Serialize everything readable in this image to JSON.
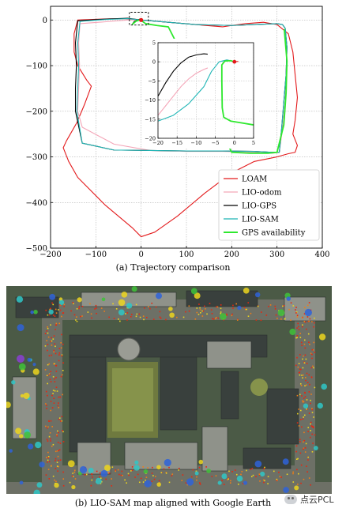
{
  "chart_data": [
    {
      "type": "line",
      "title": "",
      "xlabel": "",
      "ylabel": "",
      "xlim": [
        -200,
        400
      ],
      "ylim": [
        -500,
        30
      ],
      "xticks": [
        -200,
        -100,
        0,
        100,
        200,
        300,
        400
      ],
      "yticks": [
        0,
        -100,
        -200,
        -300,
        -400,
        -500
      ],
      "grid": true,
      "legend_position": "bottom-right",
      "highlight_box": [
        [
          -26,
          17
        ],
        [
          -26,
          -11
        ],
        [
          16,
          -11
        ],
        [
          16,
          17
        ]
      ],
      "start_point": [
        0,
        0
      ],
      "series": [
        {
          "name": "LOAM",
          "color": "#e31a1c",
          "x": [
            0,
            -10,
            -40,
            -90,
            -140,
            -148,
            -148,
            -140,
            -120,
            -110,
            -125,
            -142,
            -165,
            -172,
            -160,
            -140,
            -80,
            -20,
            0,
            30,
            80,
            140,
            200,
            250,
            300,
            325,
            340,
            345,
            335,
            340,
            345,
            340,
            335,
            325,
            300,
            270,
            230,
            200,
            180,
            0
          ],
          "y": [
            0,
            1,
            3,
            2,
            0,
            -30,
            -70,
            -100,
            -132,
            -145,
            -185,
            -225,
            -265,
            -280,
            -310,
            -345,
            -405,
            -455,
            -475,
            -465,
            -430,
            -380,
            -335,
            -310,
            -300,
            -293,
            -290,
            -275,
            -250,
            -220,
            -170,
            -120,
            -70,
            -30,
            -10,
            -5,
            -8,
            -12,
            -15,
            0
          ]
        },
        {
          "name": "LIO-odom",
          "color": "#f4a6b8",
          "x": [
            0,
            -5,
            -30,
            -80,
            -135,
            -138,
            -136,
            -138,
            -140,
            -130,
            -60,
            20,
            100,
            180,
            250,
            290,
            305,
            312,
            318,
            320,
            322,
            318,
            312,
            300,
            250,
            200,
            120,
            60,
            0
          ],
          "y": [
            0,
            0,
            0,
            -4,
            -8,
            -50,
            -100,
            -150,
            -200,
            -235,
            -272,
            -286,
            -288,
            -288,
            -290,
            -292,
            -290,
            -240,
            -180,
            -120,
            -60,
            -18,
            -10,
            -8,
            -10,
            -12,
            -10,
            -5,
            0
          ]
        },
        {
          "name": "LIO-GPS",
          "color": "#000000",
          "x": [
            -20,
            -15,
            -8,
            -3,
            0,
            -30,
            -80,
            -140,
            -145,
            -143,
            -145,
            -145,
            -130,
            -60,
            20,
            100,
            180,
            250,
            290,
            305,
            310,
            315,
            320,
            322,
            318,
            312,
            300,
            250,
            200,
            120,
            60,
            0
          ],
          "y": [
            -10,
            -3,
            0,
            2,
            0,
            4,
            2,
            -2,
            -50,
            -100,
            -150,
            -200,
            -270,
            -285,
            -286,
            -287,
            -287,
            -288,
            -290,
            -290,
            -240,
            -180,
            -120,
            -60,
            -18,
            -10,
            -8,
            -10,
            -12,
            -10,
            -5,
            0
          ]
        },
        {
          "name": "LIO-SAM",
          "color": "#1fb5b5",
          "x": [
            0,
            -30,
            -80,
            -135,
            -140,
            -138,
            -140,
            -142,
            -130,
            -60,
            20,
            100,
            180,
            250,
            290,
            305,
            310,
            315,
            320,
            322,
            318,
            312,
            300,
            250,
            200,
            120,
            60,
            0
          ],
          "y": [
            0,
            3,
            1,
            -3,
            -50,
            -100,
            -150,
            -200,
            -270,
            -285,
            -286,
            -287,
            -287,
            -288,
            -290,
            -290,
            -240,
            -180,
            -120,
            -60,
            -18,
            -10,
            -8,
            -10,
            -12,
            -10,
            -5,
            0
          ]
        },
        {
          "name": "GPS availability",
          "color": "#2ee82e",
          "x": [
            -20,
            -12,
            -4,
            0,
            10,
            35,
            60,
            200,
            240,
            280,
            300,
            315,
            320,
            322,
            316
          ],
          "y": [
            -10,
            -3,
            0,
            -1,
            -8,
            -12,
            -15,
            -290,
            -292,
            -292,
            -290,
            -230,
            -160,
            -90,
            -20
          ]
        }
      ]
    },
    {
      "type": "line",
      "title": "",
      "xlabel": "",
      "ylabel": "",
      "xlim": [
        -20,
        5
      ],
      "ylim": [
        -20,
        5
      ],
      "xticks": [
        -20,
        -15,
        -10,
        -5,
        0,
        5
      ],
      "yticks": [
        5,
        0,
        -5,
        -10,
        -15,
        -20
      ],
      "grid": true,
      "start_point": [
        0,
        0
      ],
      "series": [
        {
          "name": "LIO-GPS",
          "color": "#000000",
          "x": [
            -20,
            -18,
            -16,
            -14,
            -12,
            -10,
            -8,
            -7
          ],
          "y": [
            -9,
            -5.5,
            -2.5,
            -0.3,
            1.2,
            1.8,
            2.1,
            2.0
          ]
        },
        {
          "name": "LIO-odom",
          "color": "#f4a6b8",
          "x": [
            -20,
            -18,
            -16,
            -14,
            -12,
            -10,
            -8,
            -7
          ],
          "y": [
            -14,
            -11.5,
            -9,
            -6.5,
            -4.5,
            -3,
            -2,
            -1.6
          ]
        },
        {
          "name": "LIO-SAM",
          "color": "#1fb5b5",
          "x": [
            -20,
            -16,
            -12,
            -8,
            -6,
            -4,
            -2,
            -1,
            0
          ],
          "y": [
            -15.5,
            -14,
            -11,
            -6.5,
            -2.5,
            0,
            0.5,
            0.3,
            0
          ]
        },
        {
          "name": "GPS availability",
          "color": "#2ee82e",
          "x": [
            0,
            -1,
            -2.5,
            -3.3,
            -3.3,
            -3.2,
            -2.8,
            -1,
            2,
            5
          ],
          "y": [
            0,
            0.3,
            0.2,
            -0.8,
            -5,
            -12,
            -14.5,
            -15.5,
            -16,
            -16.5
          ]
        },
        {
          "name": "LOAM",
          "color": "#e31a1c",
          "x": [
            -0.5,
            0,
            0.5,
            1
          ],
          "y": [
            0,
            0,
            0.05,
            0.1
          ]
        }
      ]
    }
  ],
  "figure": {
    "caption_a": "(a) Trajectory comparison",
    "caption_b": "(b) LIO-SAM map aligned with Google Earth",
    "watermark": "点云PCL",
    "legend": [
      {
        "label": "LOAM",
        "color": "#e31a1c"
      },
      {
        "label": "LIO-odom",
        "color": "#f4a6b8"
      },
      {
        "label": "LIO-GPS",
        "color": "#000000"
      },
      {
        "label": "LIO-SAM",
        "color": "#1fb5b5"
      },
      {
        "label": "GPS availability",
        "color": "#2ee82e"
      }
    ]
  },
  "map": {
    "colors": {
      "ground": "#4b5a46",
      "road": "#6d7066",
      "roof_dark": "#39403d",
      "roof_light": "#8f928a",
      "courtyard": "#6f7a3f",
      "lawn": "#86934b",
      "points_red": "#e8260f",
      "points_orange": "#f07d16",
      "points_yellow": "#ecd51e",
      "points_green": "#3fc23a",
      "points_cyan": "#2fc7c7",
      "points_blue": "#2f63d8",
      "points_purple": "#8b3fd4"
    }
  }
}
